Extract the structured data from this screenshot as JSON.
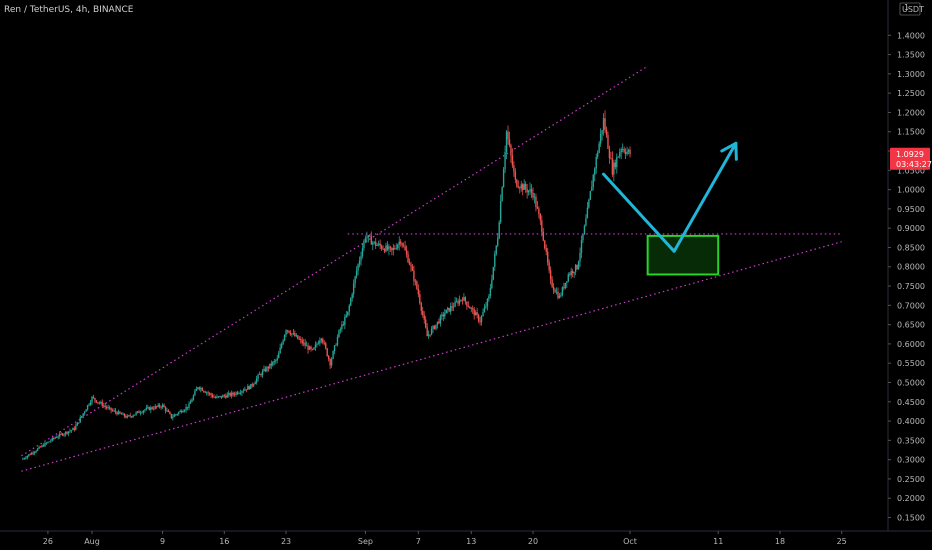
{
  "header": {
    "symbol_label": "Ren / TetherUS, 4h, BINANCE"
  },
  "price_axis": {
    "currency_label": "USDT",
    "top_label": "1"
  },
  "price_tag": {
    "price": "1.0929",
    "countdown": "03:43:27",
    "value": 1.0929,
    "color": "#f23645"
  },
  "colors": {
    "up": "#26a69a",
    "up_bright": "#3fd13f",
    "down": "#ef5350",
    "trendline": "#d03ad0",
    "arrow": "#1fb6d8",
    "box": "#27d427",
    "background": "#000000"
  },
  "chart_data": {
    "type": "candlestick",
    "title": "",
    "xlabel": "",
    "ylabel": "",
    "ylim": [
      0.115,
      1.45
    ],
    "grid": false,
    "y_ticks": [
      "0.1500",
      "0.2000",
      "0.2500",
      "0.3000",
      "0.3500",
      "0.4000",
      "0.4500",
      "0.5000",
      "0.5500",
      "0.6000",
      "0.6500",
      "0.7000",
      "0.7500",
      "0.8000",
      "0.8500",
      "0.9000",
      "0.9500",
      "1.0000",
      "1.0500",
      "1.1000",
      "1.1500",
      "1.2000",
      "1.2500",
      "1.3000",
      "1.3500",
      "1.4000"
    ],
    "x_ticks": [
      "26",
      "Aug",
      "9",
      "16",
      "23",
      "Sep",
      "7",
      "13",
      "20",
      "Oct",
      "11",
      "18",
      "25"
    ],
    "x_tick_days": [
      -5,
      0,
      8,
      15,
      22,
      31,
      37,
      43,
      50,
      61,
      71,
      78,
      85
    ],
    "x_axis_note": "days from 1 Aug",
    "price_path": [
      [
        -8,
        0.3
      ],
      [
        -6,
        0.33
      ],
      [
        -4,
        0.36
      ],
      [
        -2,
        0.38
      ],
      [
        0,
        0.46
      ],
      [
        2,
        0.43
      ],
      [
        4,
        0.41
      ],
      [
        6,
        0.43
      ],
      [
        8,
        0.44
      ],
      [
        9,
        0.41
      ],
      [
        11,
        0.44
      ],
      [
        12,
        0.49
      ],
      [
        14,
        0.46
      ],
      [
        16,
        0.47
      ],
      [
        18,
        0.49
      ],
      [
        19,
        0.52
      ],
      [
        21,
        0.56
      ],
      [
        22,
        0.64
      ],
      [
        24,
        0.6
      ],
      [
        25,
        0.58
      ],
      [
        26,
        0.62
      ],
      [
        27,
        0.55
      ],
      [
        28,
        0.63
      ],
      [
        29,
        0.68
      ],
      [
        30,
        0.79
      ],
      [
        31,
        0.88
      ],
      [
        32,
        0.86
      ],
      [
        34,
        0.84
      ],
      [
        35,
        0.87
      ],
      [
        36,
        0.81
      ],
      [
        37,
        0.73
      ],
      [
        38,
        0.62
      ],
      [
        40,
        0.68
      ],
      [
        42,
        0.72
      ],
      [
        44,
        0.66
      ],
      [
        45,
        0.72
      ],
      [
        46,
        0.88
      ],
      [
        47,
        1.15
      ],
      [
        48,
        1.02
      ],
      [
        50,
        0.99
      ],
      [
        51,
        0.9
      ],
      [
        52,
        0.76
      ],
      [
        53,
        0.72
      ],
      [
        54,
        0.78
      ],
      [
        55,
        0.8
      ],
      [
        56,
        0.92
      ],
      [
        57,
        1.06
      ],
      [
        58,
        1.18
      ],
      [
        59,
        1.05
      ],
      [
        60,
        1.11
      ],
      [
        61,
        1.0929
      ]
    ],
    "annotations": {
      "upper_trendline": [
        [
          -8,
          0.31
        ],
        [
          63,
          1.32
        ]
      ],
      "lower_trendline": [
        [
          -8,
          0.27
        ],
        [
          85,
          0.865
        ]
      ],
      "horizontal_level": {
        "y": 0.885,
        "x_from": 29,
        "x_to": 85
      },
      "support_zone": {
        "x_from": 63,
        "x_to": 71,
        "y_from": 0.78,
        "y_to": 0.88
      },
      "projection_arrow": [
        [
          58,
          1.04
        ],
        [
          66,
          0.84
        ],
        [
          73,
          1.12
        ]
      ]
    }
  }
}
